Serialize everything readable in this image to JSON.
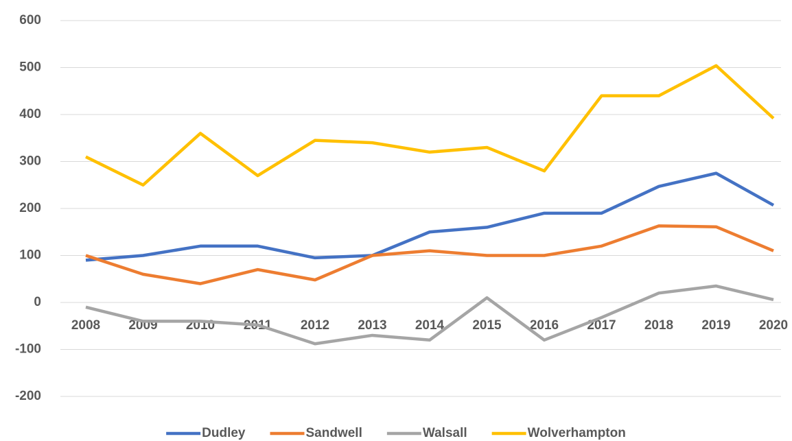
{
  "chart_data": {
    "type": "line",
    "categories": [
      "2008",
      "2009",
      "2010",
      "2011",
      "2012",
      "2013",
      "2014",
      "2015",
      "2016",
      "2017",
      "2018",
      "2019",
      "2020"
    ],
    "series": [
      {
        "name": "Dudley",
        "color": "#4472c4",
        "values": [
          90,
          100,
          120,
          120,
          95,
          100,
          150,
          160,
          190,
          190,
          247,
          275,
          207
        ]
      },
      {
        "name": "Sandwell",
        "color": "#ed7d31",
        "values": [
          100,
          60,
          40,
          70,
          48,
          100,
          110,
          100,
          100,
          120,
          163,
          161,
          110
        ]
      },
      {
        "name": "Walsall",
        "color": "#a5a5a5",
        "values": [
          -10,
          -40,
          -40,
          -48,
          -88,
          -70,
          -80,
          10,
          -80,
          -32,
          20,
          35,
          6
        ]
      },
      {
        "name": "Wolverhampton",
        "color": "#ffc000",
        "values": [
          310,
          250,
          360,
          270,
          345,
          340,
          320,
          330,
          280,
          440,
          440,
          504,
          392
        ]
      }
    ],
    "ylim": [
      -200,
      600
    ],
    "yticks": [
      -200,
      -100,
      0,
      100,
      200,
      300,
      400,
      500,
      600
    ],
    "grid": true,
    "legend": "bottom"
  }
}
